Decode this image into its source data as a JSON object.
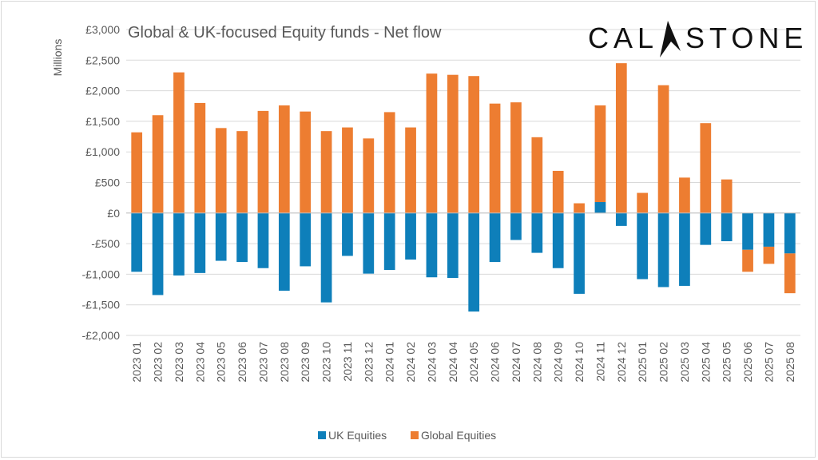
{
  "chart_data": {
    "type": "bar",
    "stacked": true,
    "title": "Global & UK-focused Equity funds - Net flow",
    "ylabel": "Millions",
    "xlabel": "",
    "ylim": [
      -2000,
      3000
    ],
    "y_ticks": [
      3000,
      2500,
      2000,
      1500,
      1000,
      500,
      0,
      -500,
      -1000,
      -1500,
      -2000
    ],
    "y_tick_labels": [
      "£3,000",
      "£2,500",
      "£2,000",
      "£1,500",
      "£1,000",
      "£500",
      "£0",
      "-£500",
      "-£1,000",
      "-£1,500",
      "-£2,000"
    ],
    "grid": true,
    "legend_position": "bottom",
    "categories": [
      "2023 01",
      "2023 02",
      "2023 03",
      "2023 04",
      "2023 05",
      "2023 06",
      "2023 07",
      "2023 08",
      "2023 09",
      "2023 10",
      "2023 11",
      "2023 12",
      "2024 01",
      "2024 02",
      "2024 03",
      "2024 04",
      "2024 05",
      "2024 06",
      "2024 07",
      "2024 08",
      "2024 09",
      "2024 10",
      "2024 11",
      "2024 12",
      "2025 01",
      "2025 02",
      "2025 03",
      "2025 04",
      "2025 05",
      "2025 06",
      "2025 07",
      "2025 08"
    ],
    "series": [
      {
        "name": "UK Equities",
        "color": "#0e7fba",
        "values": [
          -960,
          -1340,
          -1020,
          -980,
          -780,
          -800,
          -900,
          -1270,
          -870,
          -1460,
          -700,
          -990,
          -930,
          -760,
          -1050,
          -1060,
          -1610,
          -800,
          -440,
          -650,
          -900,
          -1320,
          180,
          -210,
          -1080,
          -1210,
          -1190,
          -520,
          -460,
          -600,
          -550,
          -660
        ]
      },
      {
        "name": "Global Equities",
        "color": "#ed7d31",
        "values": [
          1320,
          1600,
          2300,
          1800,
          1390,
          1340,
          1670,
          1760,
          1660,
          1340,
          1400,
          1220,
          1650,
          1400,
          2280,
          2260,
          2240,
          1790,
          1810,
          1240,
          690,
          160,
          1580,
          2450,
          330,
          2090,
          580,
          1470,
          550,
          -360,
          -280,
          -650
        ]
      }
    ]
  },
  "logo": {
    "text_left": "CAL",
    "text_right": "STONE"
  }
}
